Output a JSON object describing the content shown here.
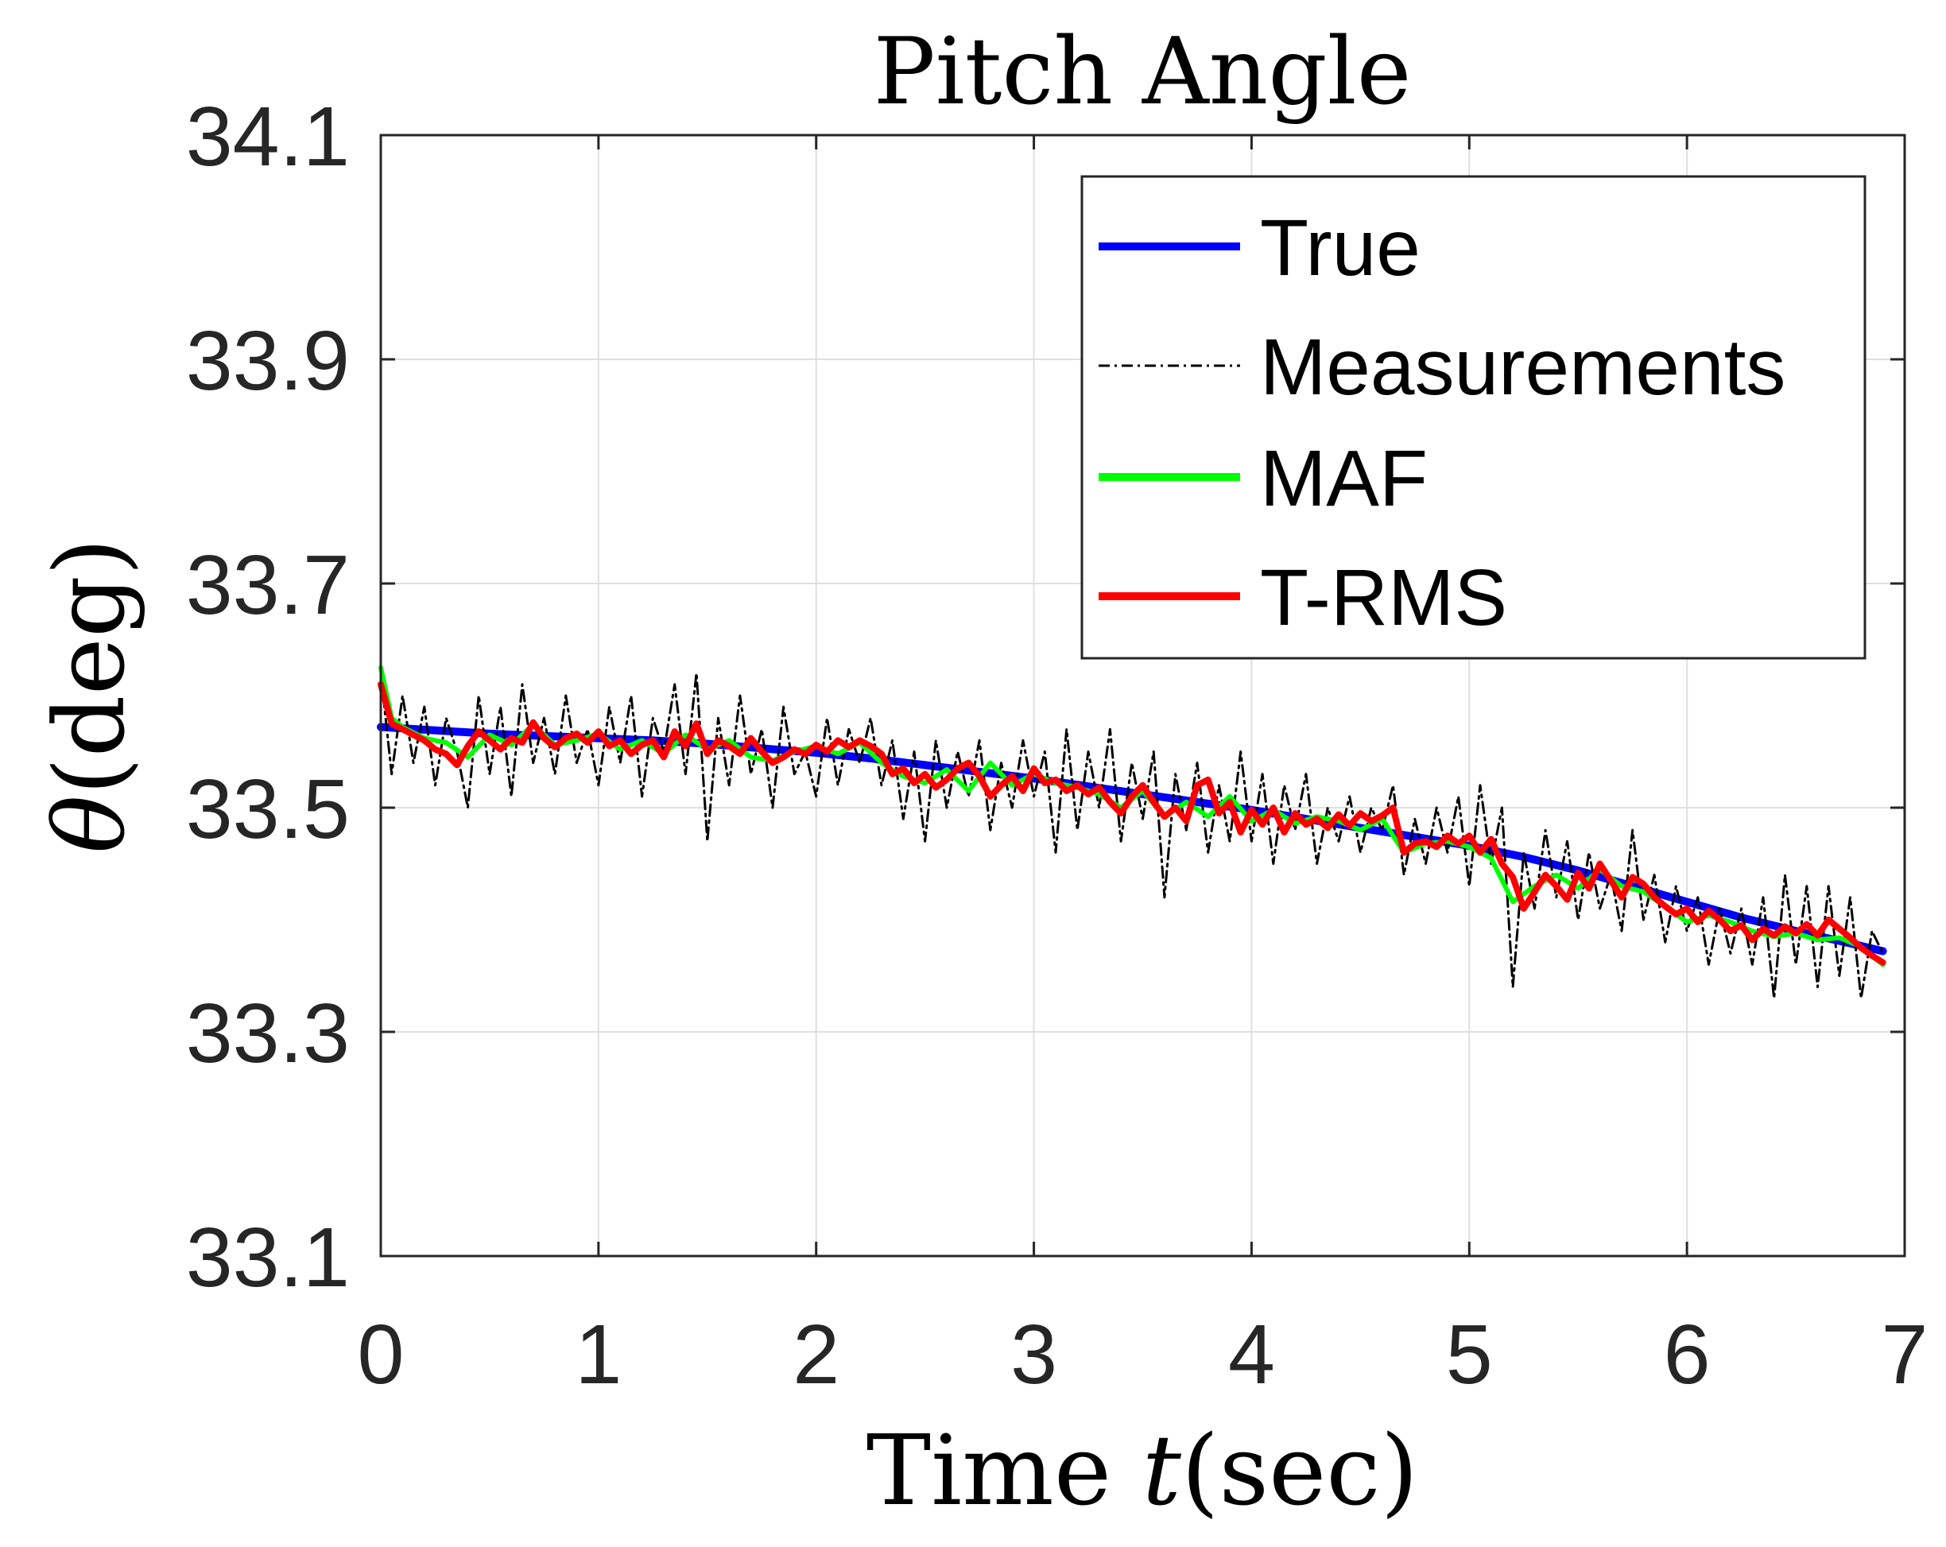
{
  "chart_data": {
    "type": "line",
    "title": "Pitch Angle",
    "xlabel": "Time t(sec)",
    "xlabel_parts": {
      "prefix": "Time ",
      "var": "t",
      "suffix": "(sec)"
    },
    "ylabel": "θ(deg)",
    "ylabel_parts": {
      "var": "θ",
      "suffix": "(deg)"
    },
    "xlim": [
      0,
      7
    ],
    "ylim": [
      33.1,
      34.1
    ],
    "xticks": [
      0,
      1,
      2,
      3,
      4,
      5,
      6,
      7
    ],
    "xtick_labels": [
      "0",
      "1",
      "2",
      "3",
      "4",
      "5",
      "6",
      "7"
    ],
    "yticks": [
      33.1,
      33.3,
      33.5,
      33.7,
      33.9,
      34.1
    ],
    "ytick_labels": [
      "33.1",
      "33.3",
      "33.5",
      "33.7",
      "33.9",
      "34.1"
    ],
    "grid": true,
    "legend_position": "top-right",
    "series": [
      {
        "name": "True",
        "color": "#0000ff",
        "style": "solid",
        "x": [
          0,
          0.25,
          0.5,
          0.75,
          1,
          1.25,
          1.5,
          1.75,
          2,
          2.25,
          2.5,
          2.75,
          3,
          3.25,
          3.5,
          3.75,
          4,
          4.25,
          4.5,
          4.75,
          5,
          5.25,
          5.5,
          5.75,
          6,
          6.25,
          6.5,
          6.75,
          6.9
        ],
        "values": [
          33.572,
          33.569,
          33.566,
          33.564,
          33.562,
          33.56,
          33.557,
          33.553,
          33.549,
          33.544,
          33.538,
          33.532,
          33.526,
          33.519,
          33.512,
          33.505,
          33.498,
          33.49,
          33.482,
          33.474,
          33.466,
          33.456,
          33.444,
          33.43,
          33.416,
          33.402,
          33.39,
          33.379,
          33.372
        ]
      },
      {
        "name": "Measurements",
        "color": "#000000",
        "style": "dashdot",
        "x": [
          0,
          0.05,
          0.1,
          0.15,
          0.2,
          0.25,
          0.3,
          0.35,
          0.4,
          0.45,
          0.5,
          0.55,
          0.6,
          0.65,
          0.7,
          0.75,
          0.8,
          0.85,
          0.9,
          0.95,
          1,
          1.05,
          1.1,
          1.15,
          1.2,
          1.25,
          1.3,
          1.35,
          1.4,
          1.45,
          1.5,
          1.55,
          1.6,
          1.65,
          1.7,
          1.75,
          1.8,
          1.85,
          1.9,
          1.95,
          2,
          2.05,
          2.1,
          2.15,
          2.2,
          2.25,
          2.3,
          2.35,
          2.4,
          2.45,
          2.5,
          2.55,
          2.6,
          2.65,
          2.7,
          2.75,
          2.8,
          2.85,
          2.9,
          2.95,
          3,
          3.05,
          3.1,
          3.15,
          3.2,
          3.25,
          3.3,
          3.35,
          3.4,
          3.45,
          3.5,
          3.55,
          3.6,
          3.65,
          3.7,
          3.75,
          3.8,
          3.85,
          3.9,
          3.95,
          4,
          4.05,
          4.1,
          4.15,
          4.2,
          4.25,
          4.3,
          4.35,
          4.4,
          4.45,
          4.5,
          4.55,
          4.6,
          4.65,
          4.7,
          4.75,
          4.8,
          4.85,
          4.9,
          4.95,
          5,
          5.05,
          5.1,
          5.15,
          5.2,
          5.25,
          5.3,
          5.35,
          5.4,
          5.45,
          5.5,
          5.55,
          5.6,
          5.65,
          5.7,
          5.75,
          5.8,
          5.85,
          5.9,
          5.95,
          6,
          6.05,
          6.1,
          6.15,
          6.2,
          6.25,
          6.3,
          6.35,
          6.4,
          6.45,
          6.5,
          6.55,
          6.6,
          6.65,
          6.7,
          6.75,
          6.8,
          6.85,
          6.9
        ],
        "values": [
          33.62,
          33.53,
          33.6,
          33.54,
          33.59,
          33.52,
          33.58,
          33.55,
          33.5,
          33.6,
          33.53,
          33.59,
          33.51,
          33.61,
          33.54,
          33.58,
          33.53,
          33.6,
          33.54,
          33.57,
          33.52,
          33.59,
          33.54,
          33.6,
          33.51,
          33.58,
          33.55,
          33.61,
          33.53,
          33.62,
          33.47,
          33.58,
          33.52,
          33.6,
          33.53,
          33.57,
          33.5,
          33.59,
          33.53,
          33.55,
          33.51,
          33.58,
          33.52,
          33.57,
          33.54,
          33.58,
          33.52,
          33.56,
          33.49,
          33.55,
          33.47,
          33.56,
          33.5,
          33.55,
          33.51,
          33.56,
          33.48,
          33.54,
          33.5,
          33.56,
          33.51,
          33.55,
          33.46,
          33.57,
          33.48,
          33.55,
          33.5,
          33.57,
          33.47,
          33.54,
          33.49,
          33.55,
          33.42,
          33.53,
          33.48,
          33.54,
          33.46,
          33.52,
          33.47,
          33.55,
          33.47,
          33.53,
          33.45,
          33.52,
          33.48,
          33.53,
          33.45,
          33.5,
          33.47,
          33.51,
          33.46,
          33.5,
          33.48,
          33.52,
          33.44,
          33.49,
          33.45,
          33.5,
          33.46,
          33.51,
          33.43,
          33.52,
          33.45,
          33.5,
          33.34,
          33.46,
          33.41,
          33.48,
          33.42,
          33.47,
          33.4,
          33.46,
          33.41,
          33.44,
          33.39,
          33.48,
          33.4,
          33.44,
          33.38,
          33.43,
          33.39,
          33.42,
          33.36,
          33.41,
          33.37,
          33.41,
          33.36,
          33.42,
          33.33,
          33.44,
          33.36,
          33.43,
          33.34,
          33.43,
          33.35,
          33.42,
          33.33,
          33.39,
          33.37
        ]
      },
      {
        "name": "MAF",
        "color": "#00ff00",
        "style": "solid",
        "x": [
          0,
          0.05,
          0.1,
          0.2,
          0.3,
          0.4,
          0.5,
          0.6,
          0.7,
          0.8,
          0.9,
          1,
          1.1,
          1.2,
          1.3,
          1.4,
          1.5,
          1.6,
          1.7,
          1.8,
          1.9,
          2,
          2.1,
          2.2,
          2.3,
          2.4,
          2.5,
          2.6,
          2.7,
          2.8,
          2.9,
          3,
          3.1,
          3.2,
          3.3,
          3.4,
          3.5,
          3.6,
          3.7,
          3.8,
          3.9,
          4,
          4.1,
          4.2,
          4.3,
          4.4,
          4.5,
          4.6,
          4.7,
          4.8,
          4.9,
          5,
          5.1,
          5.2,
          5.3,
          5.4,
          5.5,
          5.6,
          5.7,
          5.8,
          5.9,
          6,
          6.1,
          6.2,
          6.3,
          6.4,
          6.5,
          6.6,
          6.7,
          6.8,
          6.9
        ],
        "values": [
          33.625,
          33.58,
          33.572,
          33.562,
          33.558,
          33.545,
          33.565,
          33.556,
          33.574,
          33.556,
          33.56,
          33.566,
          33.552,
          33.56,
          33.548,
          33.565,
          33.552,
          33.56,
          33.545,
          33.542,
          33.55,
          33.555,
          33.548,
          33.558,
          33.54,
          33.528,
          33.522,
          33.534,
          33.515,
          33.54,
          33.52,
          33.53,
          33.522,
          33.518,
          33.512,
          33.5,
          33.515,
          33.492,
          33.505,
          33.492,
          33.51,
          33.488,
          33.498,
          33.486,
          33.492,
          33.488,
          33.48,
          33.49,
          33.46,
          33.468,
          33.47,
          33.465,
          33.455,
          33.416,
          33.43,
          33.44,
          33.428,
          33.445,
          33.43,
          33.425,
          33.412,
          33.398,
          33.404,
          33.398,
          33.39,
          33.385,
          33.388,
          33.382,
          33.384,
          33.376,
          33.36
        ]
      },
      {
        "name": "T-RMS",
        "color": "#ff0000",
        "style": "solid",
        "x": [
          0,
          0.05,
          0.1,
          0.15,
          0.2,
          0.25,
          0.3,
          0.35,
          0.4,
          0.45,
          0.5,
          0.55,
          0.6,
          0.65,
          0.7,
          0.75,
          0.8,
          0.85,
          0.9,
          0.95,
          1,
          1.05,
          1.1,
          1.15,
          1.2,
          1.25,
          1.3,
          1.35,
          1.4,
          1.45,
          1.5,
          1.55,
          1.6,
          1.65,
          1.7,
          1.75,
          1.8,
          1.85,
          1.9,
          1.95,
          2,
          2.05,
          2.1,
          2.15,
          2.2,
          2.25,
          2.3,
          2.35,
          2.4,
          2.45,
          2.5,
          2.55,
          2.6,
          2.65,
          2.7,
          2.75,
          2.8,
          2.85,
          2.9,
          2.95,
          3,
          3.05,
          3.1,
          3.15,
          3.2,
          3.25,
          3.3,
          3.35,
          3.4,
          3.45,
          3.5,
          3.55,
          3.6,
          3.65,
          3.7,
          3.75,
          3.8,
          3.85,
          3.9,
          3.95,
          4,
          4.05,
          4.1,
          4.15,
          4.2,
          4.25,
          4.3,
          4.35,
          4.4,
          4.45,
          4.5,
          4.55,
          4.6,
          4.65,
          4.7,
          4.75,
          4.8,
          4.85,
          4.9,
          4.95,
          5,
          5.05,
          5.1,
          5.15,
          5.2,
          5.25,
          5.3,
          5.35,
          5.4,
          5.45,
          5.5,
          5.55,
          5.6,
          5.65,
          5.7,
          5.75,
          5.8,
          5.85,
          5.9,
          5.95,
          6,
          6.05,
          6.1,
          6.15,
          6.2,
          6.25,
          6.3,
          6.35,
          6.4,
          6.45,
          6.5,
          6.55,
          6.6,
          6.65,
          6.7,
          6.75,
          6.8,
          6.85,
          6.9
        ],
        "values": [
          33.61,
          33.575,
          33.57,
          33.565,
          33.56,
          33.552,
          33.548,
          33.538,
          33.555,
          33.568,
          33.56,
          33.552,
          33.562,
          33.558,
          33.576,
          33.562,
          33.554,
          33.562,
          33.566,
          33.558,
          33.568,
          33.555,
          33.56,
          33.548,
          33.556,
          33.56,
          33.545,
          33.568,
          33.555,
          33.575,
          33.548,
          33.56,
          33.555,
          33.548,
          33.562,
          33.55,
          33.54,
          33.545,
          33.552,
          33.548,
          33.556,
          33.55,
          33.56,
          33.554,
          33.56,
          33.555,
          33.548,
          33.53,
          33.535,
          33.522,
          33.53,
          33.518,
          33.525,
          33.535,
          33.54,
          33.528,
          33.51,
          33.52,
          33.528,
          33.515,
          33.535,
          33.522,
          33.525,
          33.515,
          33.52,
          33.512,
          33.518,
          33.505,
          33.495,
          33.51,
          33.52,
          33.505,
          33.492,
          33.5,
          33.488,
          33.52,
          33.525,
          33.495,
          33.505,
          33.478,
          33.498,
          33.485,
          33.5,
          33.478,
          33.495,
          33.485,
          33.49,
          33.482,
          33.494,
          33.484,
          33.495,
          33.488,
          33.493,
          33.5,
          33.46,
          33.468,
          33.47,
          33.465,
          33.475,
          33.468,
          33.475,
          33.46,
          33.472,
          33.45,
          33.438,
          33.41,
          33.425,
          33.44,
          33.43,
          33.418,
          33.442,
          33.428,
          33.45,
          33.435,
          33.42,
          33.438,
          33.432,
          33.42,
          33.412,
          33.405,
          33.41,
          33.398,
          33.408,
          33.4,
          33.39,
          33.395,
          33.382,
          33.392,
          33.386,
          33.394,
          33.388,
          33.396,
          33.386,
          33.4,
          33.392,
          33.384,
          33.375,
          33.368,
          33.362
        ]
      }
    ]
  }
}
